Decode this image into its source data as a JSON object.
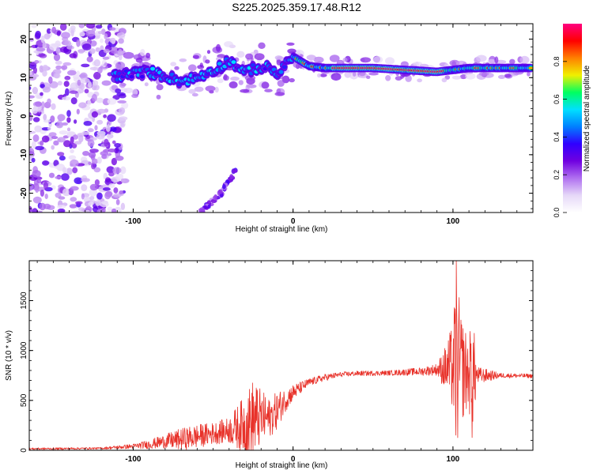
{
  "title": "S225.2025.359.17.48.R12",
  "chart_data": [
    {
      "type": "heatmap",
      "xlabel": "Height of straight line (km)",
      "ylabel": "Frequency (Hz)",
      "xlim": [
        -165,
        150
      ],
      "ylim": [
        -25,
        24
      ],
      "xticks": [
        -100,
        0,
        100
      ],
      "yticks": [
        -20,
        -10,
        0,
        10,
        20
      ],
      "colorbar": {
        "label": "Normalized spectral amplitude",
        "range": [
          0,
          1
        ],
        "ticks": [
          0.0,
          0.2,
          0.4,
          0.6,
          0.8
        ],
        "tick_labels": [
          "0.0",
          "0.2",
          "0.4",
          "0.6",
          "0.8"
        ],
        "colormap": [
          "#ffffff",
          "#e6d8f8",
          "#b070f0",
          "#7000e0",
          "#3000ff",
          "#0080ff",
          "#00e0ff",
          "#00ff60",
          "#f0f000",
          "#ff8000",
          "#ff0000",
          "#ff0080"
        ]
      },
      "ridge": {
        "description": "dominant frequency vs height",
        "x": [
          -120,
          -110,
          -100,
          -90,
          -80,
          -70,
          -60,
          -50,
          -45,
          -40,
          -35,
          -30,
          -25,
          -20,
          -15,
          -10,
          -5,
          0,
          10,
          20,
          30,
          50,
          70,
          90,
          100,
          110,
          130,
          148
        ],
        "y": [
          10,
          10.5,
          11,
          11.5,
          10.5,
          9,
          10,
          12,
          13,
          14.5,
          13,
          11,
          12.5,
          12.5,
          12.5,
          11,
          13,
          15.5,
          13,
          12.5,
          12.5,
          12.5,
          12,
          11.5,
          12,
          12.5,
          12.5,
          12.5
        ]
      },
      "secondary_branch": {
        "x": [
          -58,
          -50,
          -45,
          -40,
          -36
        ],
        "y": [
          -25,
          -22,
          -20,
          -17,
          -14
        ]
      },
      "noise_region_x": [
        -165,
        -105
      ]
    },
    {
      "type": "line",
      "xlabel": "Height of straight line (km)",
      "ylabel": "SNR (10 * v/v)",
      "xlim": [
        -165,
        150
      ],
      "ylim": [
        0,
        1900
      ],
      "xticks": [
        -100,
        0,
        100
      ],
      "yticks": [
        0,
        500,
        1000,
        1500
      ],
      "color": "#e8322a",
      "envelope": {
        "x": [
          -165,
          -120,
          -100,
          -90,
          -80,
          -70,
          -60,
          -50,
          -40,
          -30,
          -25,
          -20,
          -15,
          -10,
          -5,
          0,
          10,
          20,
          30,
          40,
          60,
          80,
          90,
          95,
          100,
          102,
          105,
          110,
          112,
          115,
          130,
          150
        ],
        "mean": [
          15,
          20,
          40,
          60,
          90,
          110,
          140,
          170,
          200,
          260,
          300,
          330,
          320,
          400,
          500,
          580,
          680,
          730,
          760,
          770,
          775,
          790,
          810,
          820,
          830,
          850,
          830,
          760,
          760,
          750,
          750,
          745
        ],
        "amp": [
          10,
          10,
          25,
          45,
          70,
          110,
          120,
          110,
          130,
          300,
          420,
          280,
          200,
          190,
          120,
          80,
          40,
          35,
          25,
          25,
          25,
          40,
          60,
          220,
          450,
          950,
          550,
          350,
          700,
          90,
          25,
          20
        ]
      },
      "peak": {
        "x": 102,
        "y": 1900
      }
    }
  ]
}
